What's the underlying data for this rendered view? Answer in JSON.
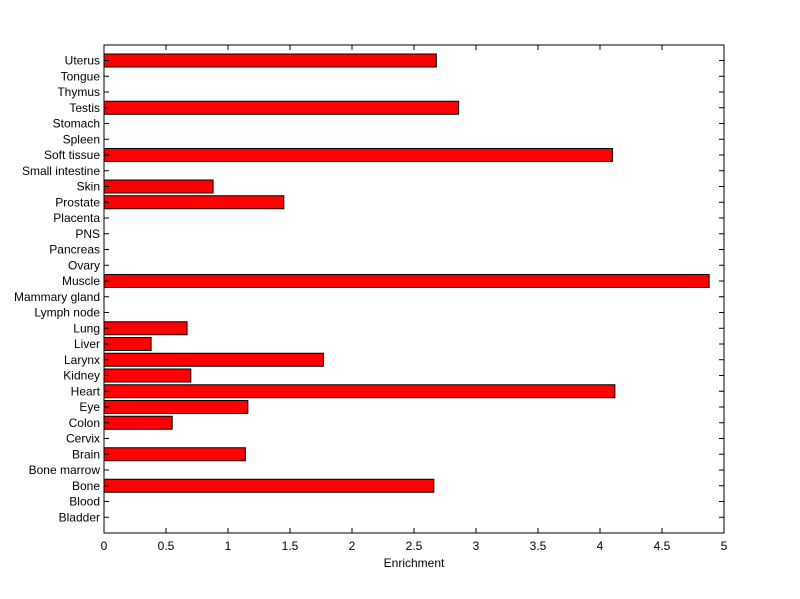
{
  "chart_data": {
    "type": "bar",
    "orientation": "horizontal",
    "categories": [
      "Uterus",
      "Tongue",
      "Thymus",
      "Testis",
      "Stomach",
      "Spleen",
      "Soft tissue",
      "Small intestine",
      "Skin",
      "Prostate",
      "Placenta",
      "PNS",
      "Pancreas",
      "Ovary",
      "Muscle",
      "Mammary gland",
      "Lymph node",
      "Lung",
      "Liver",
      "Larynx",
      "Kidney",
      "Heart",
      "Eye",
      "Colon",
      "Cervix",
      "Brain",
      "Bone marrow",
      "Bone",
      "Blood",
      "Bladder"
    ],
    "values": [
      2.68,
      0,
      0,
      2.86,
      0,
      0,
      4.1,
      0,
      0.88,
      1.45,
      0,
      0,
      0,
      0,
      4.88,
      0,
      0,
      0.67,
      0.38,
      1.77,
      0.7,
      4.12,
      1.16,
      0.55,
      0,
      1.14,
      0,
      2.66,
      0,
      0
    ],
    "title": "",
    "xlabel": "Enrichment",
    "ylabel": "",
    "xlim": [
      0,
      5
    ],
    "xticks": [
      "0",
      "0.5",
      "1",
      "1.5",
      "2",
      "2.5",
      "3",
      "3.5",
      "4",
      "4.5",
      "5"
    ],
    "bar_color": "#ff0000",
    "grid": false,
    "legend": "none"
  }
}
